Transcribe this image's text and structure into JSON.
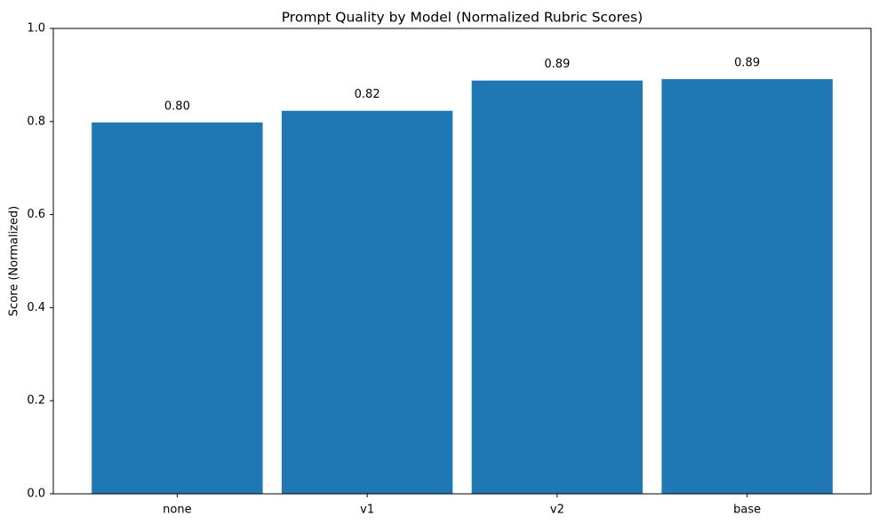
{
  "chart_data": {
    "type": "bar",
    "title": "Prompt Quality by Model (Normalized Rubric Scores)",
    "y_label": "Score (Normalized)",
    "categories": [
      "none",
      "v1",
      "v2",
      "base"
    ],
    "values": [
      0.798,
      0.823,
      0.888,
      0.891
    ],
    "value_labels": [
      "0.80",
      "0.82",
      "0.89",
      "0.89"
    ],
    "color": "#1f77b4",
    "ylim": [
      0,
      1
    ],
    "yticks": [
      {
        "value": 0,
        "label": "0.0"
      },
      0.2,
      0.4,
      0.6,
      0.8,
      {
        "value": 1,
        "label": "1.0"
      }
    ],
    "grid": false
  }
}
